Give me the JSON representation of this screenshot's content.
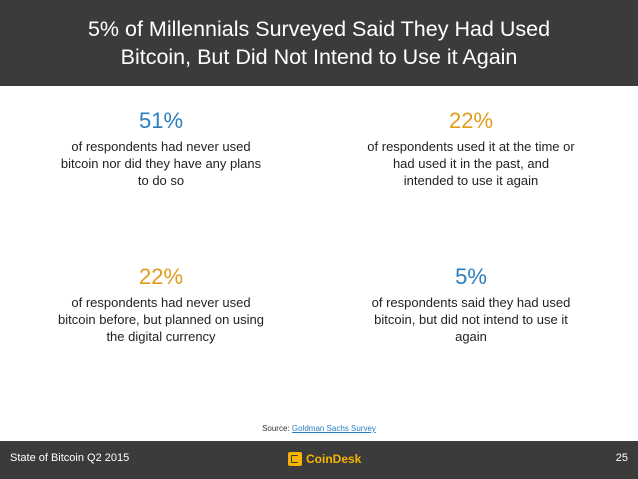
{
  "header": {
    "title_line1": "5% of Millennials Surveyed Said They Had Used",
    "title_line2": "Bitcoin, But Did Not Intend to Use it Again"
  },
  "stats": [
    {
      "percent": "51%",
      "color": "#2a7fc1",
      "lines": [
        "of respondents had never used",
        "bitcoin nor did they have any plans",
        "to do so"
      ]
    },
    {
      "percent": "22%",
      "color": "#e39b1a",
      "lines": [
        "of respondents used it at the time or",
        "had used it in the past, and",
        "intended to use it again"
      ]
    },
    {
      "percent": "22%",
      "color": "#e39b1a",
      "lines": [
        "of respondents had never used",
        "bitcoin before, but planned on using",
        "the digital currency"
      ]
    },
    {
      "percent": "5%",
      "color": "#2a7fc1",
      "lines": [
        "of respondents said they had used",
        "bitcoin, but did not intend to use it",
        "again"
      ]
    }
  ],
  "source": {
    "label": "Source:",
    "link_text": "Goldman Sachs Survey"
  },
  "footer": {
    "left_text": "State of Bitcoin Q2 2015",
    "logo_text": "CoinDesk",
    "page_number": "25"
  }
}
